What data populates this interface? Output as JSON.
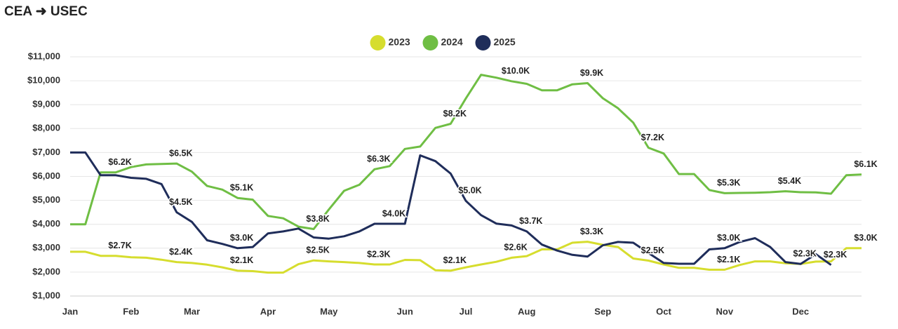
{
  "chart_data": {
    "type": "line",
    "title": "CEA ➜ USEC",
    "categories": [
      "Jan",
      null,
      null,
      null,
      "Feb",
      null,
      null,
      null,
      "Mar",
      null,
      null,
      null,
      null,
      "Apr",
      null,
      null,
      null,
      "May",
      null,
      null,
      null,
      null,
      "Jun",
      null,
      null,
      null,
      "Jul",
      null,
      null,
      null,
      "Aug",
      null,
      null,
      null,
      null,
      "Sep",
      null,
      null,
      null,
      "Oct",
      null,
      null,
      null,
      "Nov",
      null,
      null,
      null,
      null,
      "Dec",
      null,
      null,
      null,
      null
    ],
    "ylim": [
      1000,
      11000
    ],
    "yticks": [
      {
        "value": 1000,
        "label": "$1,000"
      },
      {
        "value": 2000,
        "label": "$2,000"
      },
      {
        "value": 3000,
        "label": "$3,000"
      },
      {
        "value": 4000,
        "label": "$4,000"
      },
      {
        "value": 5000,
        "label": "$5,000"
      },
      {
        "value": 6000,
        "label": "$6,000"
      },
      {
        "value": 7000,
        "label": "$7,000"
      },
      {
        "value": 8000,
        "label": "$8,000"
      },
      {
        "value": 9000,
        "label": "$9,000"
      },
      {
        "value": 10000,
        "label": "$10,000"
      },
      {
        "value": 11000,
        "label": "$11,000"
      }
    ],
    "grid": true,
    "series": [
      {
        "name": "2023",
        "color": "#d6dd2e",
        "values": [
          2850,
          2850,
          2680,
          2680,
          2620,
          2600,
          2520,
          2420,
          2380,
          2310,
          2200,
          2060,
          2040,
          1980,
          1980,
          2330,
          2490,
          2450,
          2420,
          2380,
          2320,
          2320,
          2510,
          2500,
          2080,
          2060,
          2200,
          2320,
          2430,
          2600,
          2670,
          2950,
          2950,
          3230,
          3270,
          3140,
          3050,
          2570,
          2480,
          2320,
          2180,
          2180,
          2100,
          2100,
          2300,
          2450,
          2450,
          2370,
          2340,
          2440,
          2450,
          3000,
          3000
        ],
        "value_labels": [
          null,
          null,
          null,
          "$2.7K",
          null,
          null,
          null,
          "$2.4K",
          null,
          null,
          null,
          "$2.1K",
          null,
          null,
          null,
          null,
          "$2.5K",
          null,
          null,
          null,
          "$2.3K",
          null,
          null,
          null,
          null,
          "$2.1K",
          null,
          null,
          null,
          "$2.6K",
          null,
          null,
          null,
          null,
          "$3.3K",
          null,
          null,
          null,
          "$2.5K",
          null,
          null,
          null,
          null,
          "$2.1K",
          null,
          null,
          null,
          null,
          "$2.3K",
          null,
          null,
          null,
          "$3.0K"
        ]
      },
      {
        "name": "2024",
        "color": "#6fbe44",
        "values": [
          4000,
          4000,
          6170,
          6170,
          6390,
          6500,
          6520,
          6540,
          6200,
          5600,
          5450,
          5100,
          5030,
          4350,
          4250,
          3900,
          3800,
          4620,
          5400,
          5650,
          6300,
          6430,
          7150,
          7250,
          8030,
          8200,
          9260,
          10250,
          10130,
          9980,
          9870,
          9600,
          9600,
          9850,
          9900,
          9270,
          8850,
          8250,
          7200,
          6960,
          6100,
          6100,
          5430,
          5300,
          5310,
          5320,
          5340,
          5380,
          5340,
          5330,
          5280,
          6050,
          6080
        ],
        "value_labels": [
          null,
          null,
          null,
          "$6.2K",
          null,
          null,
          null,
          "$6.5K",
          null,
          null,
          null,
          "$5.1K",
          null,
          null,
          null,
          null,
          "$3.8K",
          null,
          null,
          null,
          "$6.3K",
          null,
          null,
          null,
          null,
          "$8.2K",
          null,
          null,
          null,
          "$10.0K",
          null,
          null,
          null,
          null,
          "$9.9K",
          null,
          null,
          null,
          "$7.2K",
          null,
          null,
          null,
          null,
          "$5.3K",
          null,
          null,
          null,
          "$5.4K",
          null,
          null,
          null,
          null,
          "$6.1K"
        ]
      },
      {
        "name": "2025",
        "color": "#1f2d5a",
        "values": [
          7000,
          7000,
          6050,
          6050,
          5940,
          5900,
          5680,
          4500,
          4100,
          3330,
          3180,
          3000,
          3050,
          3620,
          3700,
          3820,
          3450,
          3400,
          3500,
          3700,
          4020,
          4020,
          4020,
          6880,
          6640,
          6120,
          4980,
          4380,
          4030,
          3950,
          3700,
          3150,
          2900,
          2720,
          2650,
          3120,
          3260,
          3230,
          2800,
          2380,
          2350,
          2350,
          2950,
          3000,
          3260,
          3420,
          3050,
          2420,
          2340,
          2750,
          2300,
          null,
          null
        ],
        "value_labels": [
          null,
          null,
          null,
          null,
          null,
          null,
          null,
          "$4.5K",
          null,
          null,
          null,
          "$3.0K",
          null,
          null,
          null,
          null,
          null,
          null,
          null,
          null,
          null,
          "$4.0K",
          null,
          null,
          null,
          null,
          "$5.0K",
          null,
          null,
          null,
          "$3.7K",
          null,
          null,
          null,
          null,
          null,
          null,
          null,
          null,
          null,
          null,
          null,
          null,
          "$3.0K",
          null,
          null,
          null,
          null,
          null,
          null,
          "$2.3K",
          null,
          null
        ]
      }
    ]
  }
}
